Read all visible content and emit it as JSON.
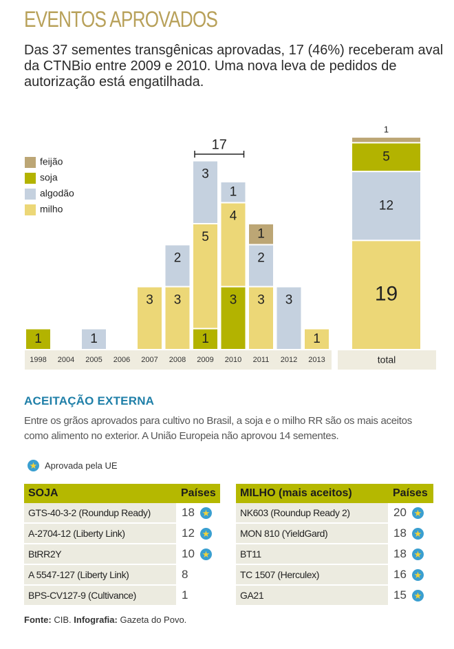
{
  "header": {
    "title": "EVENTOS APROVADOS",
    "lead": "Das 37 sementes transgênicas aprovadas, 17 (46%) receberam aval da CTNBio entre 2009 e 2010. Uma nova leva de pedidos de autorização está engatilhada."
  },
  "chart_data": {
    "type": "bar",
    "stacked": true,
    "categories": [
      "1998",
      "2004",
      "2005",
      "2006",
      "2007",
      "2008",
      "2009",
      "2010",
      "2011",
      "2012",
      "2013"
    ],
    "series": [
      {
        "name": "milho",
        "color": "#ecd777",
        "values": [
          0,
          0,
          0,
          0,
          3,
          3,
          5,
          4,
          3,
          0,
          1
        ]
      },
      {
        "name": "soja",
        "color": "#b3b300",
        "values": [
          1,
          0,
          0,
          0,
          0,
          0,
          1,
          3,
          0,
          0,
          0
        ]
      },
      {
        "name": "algodão",
        "color": "#c5d1df",
        "values": [
          0,
          0,
          1,
          0,
          0,
          2,
          3,
          1,
          2,
          3,
          0
        ]
      },
      {
        "name": "feijão",
        "color": "#bca675",
        "values": [
          0,
          0,
          0,
          0,
          0,
          0,
          0,
          0,
          1,
          0,
          0
        ]
      }
    ],
    "stack_order": [
      "soja",
      "milho",
      "algodão",
      "feijão"
    ],
    "legend_order": [
      "feijão",
      "soja",
      "algodão",
      "milho"
    ],
    "legend_position": "top-left",
    "annotation": {
      "label": "17",
      "from": "2009",
      "to": "2010"
    },
    "total": {
      "label": "total",
      "milho": 19,
      "algodão": 12,
      "soja": 5,
      "feijão": 1
    },
    "grid": false
  },
  "section": {
    "title": "ACEITAÇÃO EXTERNA",
    "text": "Entre os grãos aprovados para cultivo no Brasil, a soja e o milho RR são os mais aceitos como alimento no exterior. A União Europeia não aprovou 14 sementes.",
    "ue_legend": "Aprovada pela UE"
  },
  "tables": {
    "soja": {
      "title": "SOJA",
      "col": "Países",
      "rows": [
        {
          "name": "GTS-40-3-2 (Roundup Ready)",
          "value": "18",
          "ue": true
        },
        {
          "name": "A-2704-12 (Liberty Link)",
          "value": "12",
          "ue": true
        },
        {
          "name": "BtRR2Y",
          "value": "10",
          "ue": true
        },
        {
          "name": "A 5547-127 (Liberty Link)",
          "value": "8",
          "ue": false
        },
        {
          "name": "BPS-CV127-9 (Cultivance)",
          "value": "1",
          "ue": false
        }
      ]
    },
    "milho": {
      "title": "MILHO (mais aceitos)",
      "col": "Países",
      "rows": [
        {
          "name": "NK603 (Roundup Ready 2)",
          "value": "20",
          "ue": true
        },
        {
          "name": "MON 810 (YieldGard)",
          "value": "18",
          "ue": true
        },
        {
          "name": "BT11",
          "value": "18",
          "ue": true
        },
        {
          "name": "TC 1507 (Herculex)",
          "value": "16",
          "ue": true
        },
        {
          "name": "GA21",
          "value": "15",
          "ue": true
        }
      ]
    }
  },
  "footer": {
    "source_label": "Fonte:",
    "source": "CIB.",
    "infografia_label": "Infografia:",
    "infografia": "Gazeta do Povo."
  }
}
